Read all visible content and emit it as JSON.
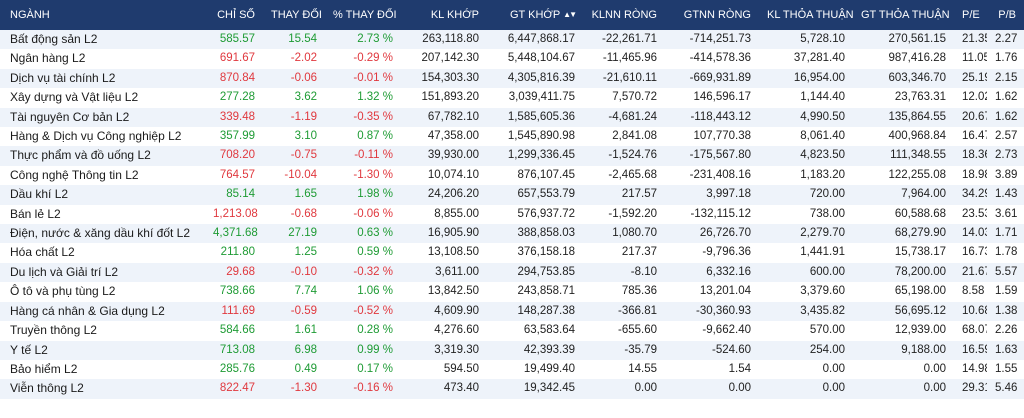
{
  "colors": {
    "header_bg": "#1f3b6e",
    "up": "#1e9b34",
    "down": "#e0383e",
    "row_alt": "#eef3fa"
  },
  "table": {
    "headers": [
      "NGÀNH",
      "CHỈ SỐ",
      "THAY ĐỔI",
      "% THAY ĐỔI",
      "KL KHỚP",
      "GT KHỚP",
      "KLNN RÒNG",
      "GTNN RÒNG",
      "KL THỎA THUẬN",
      "GT THỎA THUẬN",
      "P/E",
      "P/B"
    ],
    "sort_icon": "sort-updown-icon",
    "rows": [
      {
        "trend": "up",
        "cells": [
          "Bất động sản L2",
          "585.57",
          "15.54",
          "2.73 %",
          "263,118.80",
          "6,447,868.17",
          "-22,261.71",
          "-714,251.73",
          "5,728.10",
          "270,561.15",
          "21.35",
          "2.27"
        ]
      },
      {
        "trend": "down",
        "cells": [
          "Ngân hàng L2",
          "691.67",
          "-2.02",
          "-0.29 %",
          "207,142.30",
          "5,448,104.67",
          "-11,465.96",
          "-414,578.36",
          "37,281.40",
          "987,416.28",
          "11.05",
          "1.76"
        ]
      },
      {
        "trend": "down",
        "cells": [
          "Dịch vụ tài chính L2",
          "870.84",
          "-0.06",
          "-0.01 %",
          "154,303.30",
          "4,305,816.39",
          "-21,610.11",
          "-669,931.89",
          "16,954.00",
          "603,346.70",
          "25.19",
          "2.15"
        ]
      },
      {
        "trend": "up",
        "cells": [
          "Xây dựng và Vật liệu L2",
          "277.28",
          "3.62",
          "1.32 %",
          "151,893.20",
          "3,039,411.75",
          "7,570.72",
          "146,596.17",
          "1,144.40",
          "23,763.31",
          "12.02",
          "1.62"
        ]
      },
      {
        "trend": "down",
        "cells": [
          "Tài nguyên Cơ bản L2",
          "339.48",
          "-1.19",
          "-0.35 %",
          "67,782.10",
          "1,585,605.36",
          "-4,681.24",
          "-118,443.12",
          "4,990.50",
          "135,864.55",
          "20.67",
          "1.62"
        ]
      },
      {
        "trend": "up",
        "cells": [
          "Hàng & Dịch vụ Công nghiệp L2",
          "357.99",
          "3.10",
          "0.87 %",
          "47,358.00",
          "1,545,890.98",
          "2,841.08",
          "107,770.38",
          "8,061.40",
          "400,968.84",
          "16.47",
          "2.57"
        ]
      },
      {
        "trend": "down",
        "cells": [
          "Thực phẩm và đồ uống L2",
          "708.20",
          "-0.75",
          "-0.11 %",
          "39,930.00",
          "1,299,336.45",
          "-1,524.76",
          "-175,567.80",
          "4,823.50",
          "111,348.55",
          "18.36",
          "2.73"
        ]
      },
      {
        "trend": "down",
        "cells": [
          "Công nghệ Thông tin L2",
          "764.57",
          "-10.04",
          "-1.30 %",
          "10,074.10",
          "876,107.45",
          "-2,465.68",
          "-231,408.16",
          "1,183.20",
          "122,255.08",
          "18.98",
          "3.89"
        ]
      },
      {
        "trend": "up",
        "cells": [
          "Dầu khí L2",
          "85.14",
          "1.65",
          "1.98 %",
          "24,206.20",
          "657,553.79",
          "217.57",
          "3,997.18",
          "720.00",
          "7,964.00",
          "34.29",
          "1.43"
        ]
      },
      {
        "trend": "down",
        "cells": [
          "Bán lẻ L2",
          "1,213.08",
          "-0.68",
          "-0.06 %",
          "8,855.00",
          "576,937.72",
          "-1,592.20",
          "-132,115.12",
          "738.00",
          "60,588.68",
          "23.53",
          "3.61"
        ]
      },
      {
        "trend": "up",
        "cells": [
          "Điện, nước & xăng dầu khí đốt L2",
          "4,371.68",
          "27.19",
          "0.63 %",
          "16,905.90",
          "388,858.03",
          "1,080.70",
          "26,726.70",
          "2,279.70",
          "68,279.90",
          "14.03",
          "1.71"
        ]
      },
      {
        "trend": "up",
        "cells": [
          "Hóa chất L2",
          "211.80",
          "1.25",
          "0.59 %",
          "13,108.50",
          "376,158.18",
          "217.37",
          "-9,796.36",
          "1,441.91",
          "15,738.17",
          "16.73",
          "1.78"
        ]
      },
      {
        "trend": "down",
        "cells": [
          "Du lịch và Giải trí L2",
          "29.68",
          "-0.10",
          "-0.32 %",
          "3,611.00",
          "294,753.85",
          "-8.10",
          "6,332.16",
          "600.00",
          "78,200.00",
          "21.67",
          "5.57"
        ]
      },
      {
        "trend": "up",
        "cells": [
          "Ô tô và phụ tùng L2",
          "738.66",
          "7.74",
          "1.06 %",
          "13,842.50",
          "243,858.71",
          "785.36",
          "13,201.04",
          "3,379.60",
          "65,198.00",
          "8.58",
          "1.59"
        ]
      },
      {
        "trend": "down",
        "cells": [
          "Hàng cá nhân & Gia dụng L2",
          "111.69",
          "-0.59",
          "-0.52 %",
          "4,609.90",
          "148,287.38",
          "-366.81",
          "-30,360.93",
          "3,435.82",
          "56,695.12",
          "10.68",
          "1.38"
        ]
      },
      {
        "trend": "up",
        "cells": [
          "Truyền thông L2",
          "584.66",
          "1.61",
          "0.28 %",
          "4,276.60",
          "63,583.64",
          "-655.60",
          "-9,662.40",
          "570.00",
          "12,939.00",
          "68.07",
          "2.26"
        ]
      },
      {
        "trend": "up",
        "cells": [
          "Y tế L2",
          "713.08",
          "6.98",
          "0.99 %",
          "3,319.30",
          "42,393.39",
          "-35.79",
          "-524.60",
          "254.00",
          "9,188.00",
          "16.59",
          "1.63"
        ]
      },
      {
        "trend": "up",
        "cells": [
          "Bảo hiểm L2",
          "285.76",
          "0.49",
          "0.17 %",
          "594.50",
          "19,499.40",
          "14.55",
          "1.54",
          "0.00",
          "0.00",
          "14.98",
          "1.55"
        ]
      },
      {
        "trend": "down",
        "cells": [
          "Viễn thông L2",
          "822.47",
          "-1.30",
          "-0.16 %",
          "473.40",
          "19,342.45",
          "0.00",
          "0.00",
          "0.00",
          "0.00",
          "29.31",
          "5.46"
        ]
      }
    ]
  }
}
